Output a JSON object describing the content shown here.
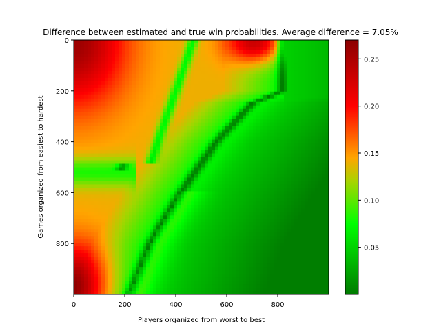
{
  "chart_data": {
    "type": "heatmap",
    "title": "Difference between estimated and true win probabilities. Average difference = 7.05%",
    "xlabel": "Players organized from worst to best",
    "ylabel": "Games organized from easiest to hardest",
    "xlim": [
      0,
      1000
    ],
    "ylim": [
      1000,
      0
    ],
    "x_ticks": [
      0,
      200,
      400,
      600,
      800
    ],
    "y_ticks": [
      0,
      200,
      400,
      600,
      800
    ],
    "colorbar": {
      "range": [
        0,
        0.27
      ],
      "ticks": [
        0.05,
        0.1,
        0.15,
        0.2,
        0.25
      ],
      "tick_labels": [
        "0.05",
        "0.10",
        "0.15",
        "0.20",
        "0.25"
      ],
      "colors": [
        {
          "value": 0.0,
          "color": "#007a00"
        },
        {
          "value": 0.075,
          "color": "#00ff00"
        },
        {
          "value": 0.12,
          "color": "#a8d400"
        },
        {
          "value": 0.145,
          "color": "#ffa500"
        },
        {
          "value": 0.2,
          "color": "#ff0000"
        },
        {
          "value": 0.27,
          "color": "#8b0000"
        }
      ]
    },
    "surface": {
      "description_points": [
        {
          "x": 0,
          "y": 0,
          "value": 0.21
        },
        {
          "x": 300,
          "y": 0,
          "value": 0.14
        },
        {
          "x": 470,
          "y": 0,
          "value": 0.02
        },
        {
          "x": 720,
          "y": 20,
          "value": 0.22
        },
        {
          "x": 900,
          "y": 0,
          "value": 0.05
        },
        {
          "x": 1000,
          "y": 500,
          "value": 0.01
        },
        {
          "x": 0,
          "y": 500,
          "value": 0.03
        },
        {
          "x": 0,
          "y": 950,
          "value": 0.22
        },
        {
          "x": 220,
          "y": 990,
          "value": 0.01
        },
        {
          "x": 500,
          "y": 500,
          "value": 0.02
        },
        {
          "x": 600,
          "y": 600,
          "value": 0.12
        }
      ],
      "valley_ridge": [
        [
          220,
          1000
        ],
        [
          300,
          800
        ],
        [
          420,
          600
        ],
        [
          560,
          400
        ],
        [
          700,
          250
        ],
        [
          820,
          200
        ]
      ],
      "valley_upper": [
        [
          470,
          0
        ],
        [
          420,
          200
        ],
        [
          330,
          400
        ],
        [
          250,
          500
        ],
        [
          100,
          500
        ]
      ]
    }
  }
}
